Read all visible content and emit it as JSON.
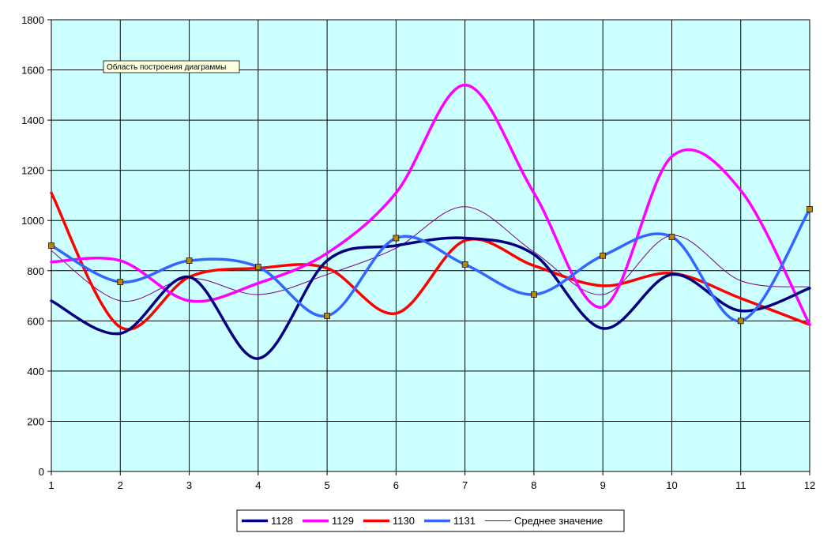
{
  "chart_data": {
    "type": "line",
    "title": "",
    "xlabel": "",
    "ylabel": "",
    "x": [
      1,
      2,
      3,
      4,
      5,
      6,
      7,
      8,
      9,
      10,
      11,
      12
    ],
    "xlim": [
      1,
      12
    ],
    "ylim": [
      0,
      1800
    ],
    "y_ticks": [
      0,
      200,
      400,
      600,
      800,
      1000,
      1200,
      1400,
      1600,
      1800
    ],
    "grid": true,
    "smooth": true,
    "legend_position": "bottom",
    "plot_background": "#CCFFFF",
    "tooltip": "Область построения диаграммы",
    "series": [
      {
        "name": "1128",
        "color": "#000080",
        "width": 3.5,
        "markers": false,
        "values": [
          680,
          550,
          775,
          450,
          840,
          900,
          930,
          865,
          570,
          785,
          640,
          730
        ]
      },
      {
        "name": "1129",
        "color": "#FF00FF",
        "width": 3.5,
        "markers": false,
        "values": [
          835,
          840,
          680,
          750,
          870,
          1110,
          1540,
          1110,
          655,
          1255,
          1120,
          585
        ]
      },
      {
        "name": "1130",
        "color": "#FF0000",
        "width": 3.5,
        "markers": false,
        "values": [
          1110,
          575,
          775,
          810,
          810,
          630,
          920,
          820,
          740,
          790,
          690,
          585
        ]
      },
      {
        "name": "1131",
        "color": "#3366FF",
        "width": 3.5,
        "markers": true,
        "values": [
          900,
          755,
          840,
          815,
          620,
          930,
          825,
          705,
          860,
          935,
          600,
          1045
        ]
      },
      {
        "name": "Среднее значение",
        "color": "#800080",
        "width": 1,
        "markers": false,
        "values": [
          880,
          680,
          770,
          705,
          785,
          890,
          1055,
          875,
          705,
          940,
          760,
          735
        ]
      }
    ]
  }
}
